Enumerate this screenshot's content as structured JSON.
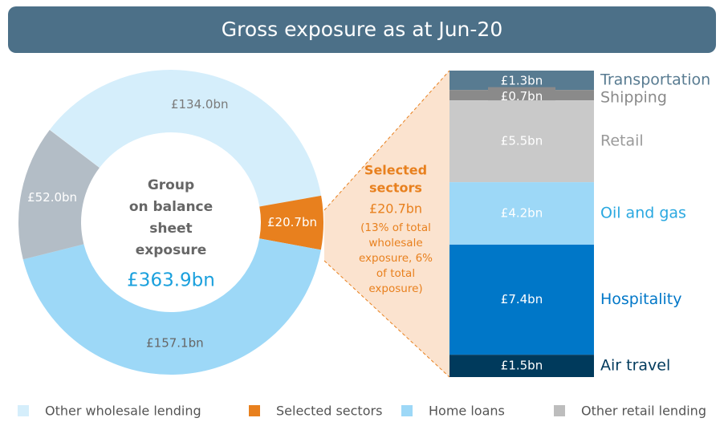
{
  "title": "Gross exposure as at Jun-20",
  "chart_data": [
    {
      "type": "pie",
      "donut": true,
      "categories": [
        "Other wholesale lending",
        "Selected sectors",
        "Home loans",
        "Other retail lending"
      ],
      "values": [
        134.0,
        20.7,
        157.1,
        52.0
      ],
      "value_labels": [
        "£134.0bn",
        "£20.7bn",
        "£157.1bn",
        "£52.0bn"
      ],
      "colors": [
        "#d5eefb",
        "#e8801e",
        "#9dd8f7",
        "#b3bdc6"
      ],
      "center_label_lines": [
        "Group",
        "on balance",
        "sheet",
        "exposure"
      ],
      "total": 363.9,
      "total_label": "£363.9bn",
      "legend": "bottom"
    },
    {
      "type": "bar",
      "stacked": true,
      "title_lines": [
        "Selected",
        "sectors"
      ],
      "total_label": "£20.7bn",
      "note_lines": [
        "(13% of total",
        "wholesale",
        "exposure, 6%",
        "of total",
        "exposure)"
      ],
      "categories": [
        "Transportation",
        "Shipping",
        "Retail",
        "Oil and gas",
        "Hospitality",
        "Air travel"
      ],
      "values": [
        1.3,
        0.7,
        5.5,
        4.2,
        7.4,
        1.5
      ],
      "value_labels": [
        "£1.3bn",
        "£0.7bn",
        "£5.5bn",
        "£4.2bn",
        "£7.4bn",
        "£1.5bn"
      ],
      "colors": [
        "#587b91",
        "#8a8a8a",
        "#c9c9c9",
        "#9dd8f7",
        "#0077c8",
        "#003a5c"
      ],
      "label_colors": [
        "#587b91",
        "#8a8a8a",
        "#9a9a9a",
        "#2aa8e0",
        "#0077c8",
        "#003a5c"
      ]
    }
  ]
}
